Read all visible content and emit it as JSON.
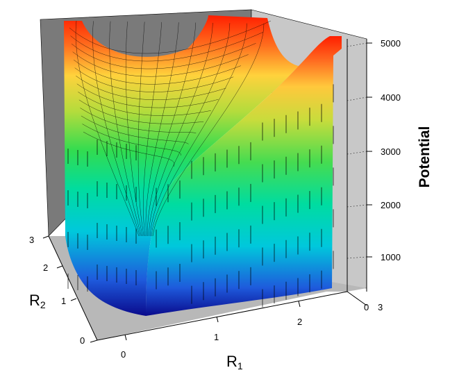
{
  "chart_data": {
    "type": "surface",
    "zlabel": "Potential",
    "xlabel_main": "R",
    "xlabel_sub": "1",
    "ylabel_main": "R",
    "ylabel_sub": "2",
    "x_ticks": [
      "0",
      "1",
      "2",
      "3"
    ],
    "y_ticks": [
      "0",
      "1",
      "2",
      "3"
    ],
    "z_ticks": [
      "1000",
      "2000",
      "3000",
      "4000",
      "5000"
    ],
    "z_floor_tick": "0",
    "x_range": [
      0,
      3
    ],
    "y_range": [
      0,
      3
    ],
    "zlim": [
      0,
      5000
    ],
    "colormap": [
      "#0a0a8c",
      "#1e5adc",
      "#00c8dc",
      "#00dca0",
      "#32dc50",
      "#b4dc3c",
      "#ffd23c",
      "#ff6e1e",
      "#ff1e00"
    ],
    "floor_color": "#b4b4b4",
    "wall_color": "#787878",
    "grid": true
  }
}
